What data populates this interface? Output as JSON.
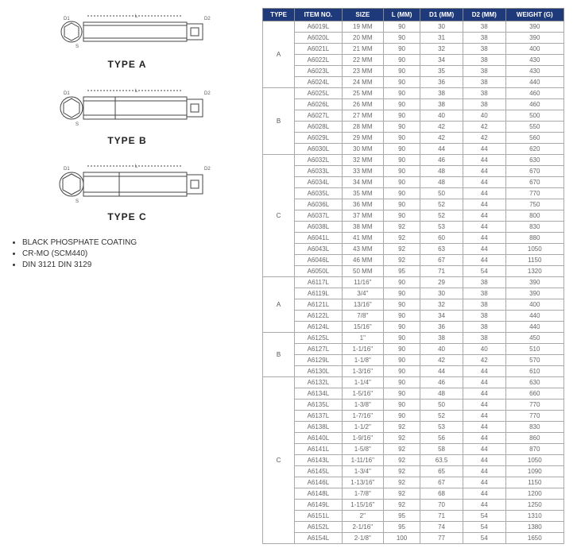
{
  "diagrams": {
    "a": {
      "label": "TYPE  A"
    },
    "b": {
      "label": "TYPE  B"
    },
    "c": {
      "label": "TYPE  C"
    }
  },
  "notes": [
    "BLACK PHOSPHATE COATING",
    "CR-MO (SCM440)",
    "DIN 3121 DIN 3129"
  ],
  "table": {
    "headers": [
      "TYPE",
      "ITEM NO.",
      "SIZE",
      "L (MM)",
      "D1 (MM)",
      "D2 (MM)",
      "WEIGHT (G)"
    ],
    "groups": [
      {
        "type": "A",
        "rows": [
          [
            "A6019L",
            "19 MM",
            "90",
            "30",
            "38",
            "390"
          ],
          [
            "A6020L",
            "20 MM",
            "90",
            "31",
            "38",
            "390"
          ],
          [
            "A6021L",
            "21 MM",
            "90",
            "32",
            "38",
            "400"
          ],
          [
            "A6022L",
            "22 MM",
            "90",
            "34",
            "38",
            "430"
          ],
          [
            "A6023L",
            "23 MM",
            "90",
            "35",
            "38",
            "430"
          ],
          [
            "A6024L",
            "24 MM",
            "90",
            "36",
            "38",
            "440"
          ]
        ]
      },
      {
        "type": "B",
        "rows": [
          [
            "A6025L",
            "25 MM",
            "90",
            "38",
            "38",
            "460"
          ],
          [
            "A6026L",
            "26 MM",
            "90",
            "38",
            "38",
            "460"
          ],
          [
            "A6027L",
            "27 MM",
            "90",
            "40",
            "40",
            "500"
          ],
          [
            "A6028L",
            "28 MM",
            "90",
            "42",
            "42",
            "550"
          ],
          [
            "A6029L",
            "29 MM",
            "90",
            "42",
            "42",
            "560"
          ],
          [
            "A6030L",
            "30 MM",
            "90",
            "44",
            "44",
            "620"
          ]
        ]
      },
      {
        "type": "C",
        "rows": [
          [
            "A6032L",
            "32 MM",
            "90",
            "46",
            "44",
            "630"
          ],
          [
            "A6033L",
            "33 MM",
            "90",
            "48",
            "44",
            "670"
          ],
          [
            "A6034L",
            "34 MM",
            "90",
            "48",
            "44",
            "670"
          ],
          [
            "A6035L",
            "35 MM",
            "90",
            "50",
            "44",
            "770"
          ],
          [
            "A6036L",
            "36 MM",
            "90",
            "52",
            "44",
            "750"
          ],
          [
            "A6037L",
            "37 MM",
            "90",
            "52",
            "44",
            "800"
          ],
          [
            "A6038L",
            "38 MM",
            "92",
            "53",
            "44",
            "830"
          ],
          [
            "A6041L",
            "41 MM",
            "92",
            "60",
            "44",
            "880"
          ],
          [
            "A6043L",
            "43 MM",
            "92",
            "63",
            "44",
            "1050"
          ],
          [
            "A6046L",
            "46 MM",
            "92",
            "67",
            "44",
            "1150"
          ],
          [
            "A6050L",
            "50 MM",
            "95",
            "71",
            "54",
            "1320"
          ]
        ]
      },
      {
        "type": "A",
        "rows": [
          [
            "A6117L",
            "11/16\"",
            "90",
            "29",
            "38",
            "390"
          ],
          [
            "A6119L",
            "3/4\"",
            "90",
            "30",
            "38",
            "390"
          ],
          [
            "A6121L",
            "13/16\"",
            "90",
            "32",
            "38",
            "400"
          ],
          [
            "A6122L",
            "7/8\"",
            "90",
            "34",
            "38",
            "440"
          ],
          [
            "A6124L",
            "15/16\"",
            "90",
            "36",
            "38",
            "440"
          ]
        ]
      },
      {
        "type": "B",
        "rows": [
          [
            "A6125L",
            "1\"",
            "90",
            "38",
            "38",
            "450"
          ],
          [
            "A6127L",
            "1-1/16\"",
            "90",
            "40",
            "40",
            "510"
          ],
          [
            "A6129L",
            "1-1/8\"",
            "90",
            "42",
            "42",
            "570"
          ],
          [
            "A6130L",
            "1-3/16\"",
            "90",
            "44",
            "44",
            "610"
          ]
        ]
      },
      {
        "type": "C",
        "rows": [
          [
            "A6132L",
            "1-1/4\"",
            "90",
            "46",
            "44",
            "630"
          ],
          [
            "A6134L",
            "1-5/16\"",
            "90",
            "48",
            "44",
            "660"
          ],
          [
            "A6135L",
            "1-3/8\"",
            "90",
            "50",
            "44",
            "770"
          ],
          [
            "A6137L",
            "1-7/16\"",
            "90",
            "52",
            "44",
            "770"
          ],
          [
            "A6138L",
            "1-1/2\"",
            "92",
            "53",
            "44",
            "830"
          ],
          [
            "A6140L",
            "1-9/16\"",
            "92",
            "56",
            "44",
            "860"
          ],
          [
            "A6141L",
            "1-5/8\"",
            "92",
            "58",
            "44",
            "870"
          ],
          [
            "A6143L",
            "1-11/16\"",
            "92",
            "63.5",
            "44",
            "1050"
          ],
          [
            "A6145L",
            "1-3/4\"",
            "92",
            "65",
            "44",
            "1090"
          ],
          [
            "A6146L",
            "1-13/16\"",
            "92",
            "67",
            "44",
            "1150"
          ],
          [
            "A6148L",
            "1-7/8\"",
            "92",
            "68",
            "44",
            "1200"
          ],
          [
            "A6149L",
            "1-15/16\"",
            "92",
            "70",
            "44",
            "1250"
          ],
          [
            "A6151L",
            "2\"",
            "95",
            "71",
            "54",
            "1310"
          ],
          [
            "A6152L",
            "2-1/16\"",
            "95",
            "74",
            "54",
            "1380"
          ],
          [
            "A6154L",
            "2-1/8\"",
            "100",
            "77",
            "54",
            "1650"
          ]
        ]
      }
    ]
  },
  "colors": {
    "header_bg": "#1f3a7a",
    "header_fg": "#ffffff",
    "border": "#aaaaaa",
    "text": "#666666"
  }
}
